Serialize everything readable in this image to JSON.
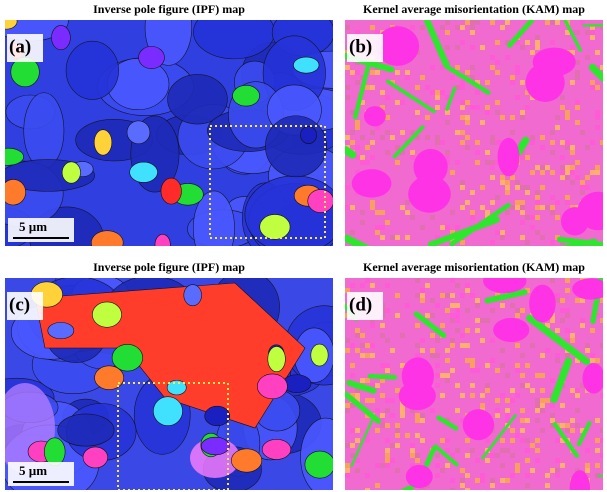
{
  "panels": [
    {
      "title": "Inverse pole figure (IPF) map",
      "label": "(a)",
      "scale_bar": "5 µm"
    },
    {
      "title": "Kernel average misorientation (KAM) map",
      "label": "(b)"
    },
    {
      "title": "Inverse pole figure (IPF) map",
      "label": "(c)",
      "scale_bar": "5 µm"
    },
    {
      "title": "Kernel average misorientation (KAM) map",
      "label": "(d)"
    }
  ]
}
